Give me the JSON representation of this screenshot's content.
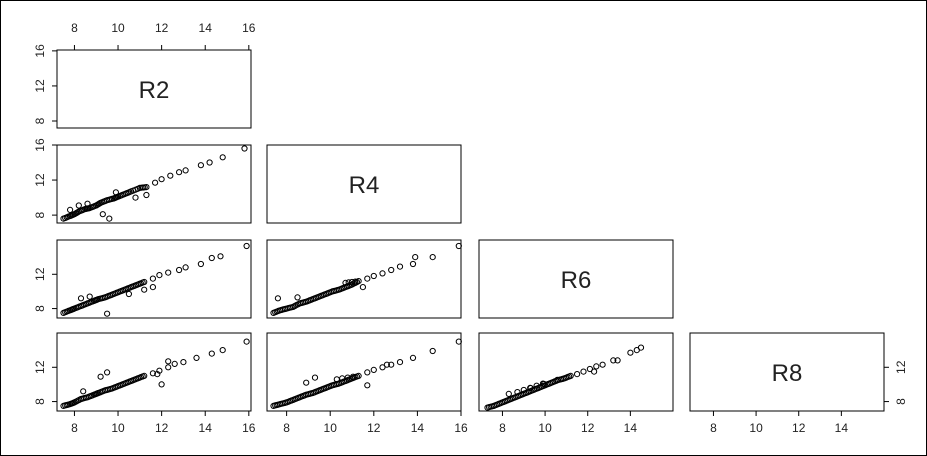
{
  "chart_data": {
    "type": "scatter",
    "layout": "pairs-lower-triangle",
    "variables": [
      "R2",
      "R4",
      "R6",
      "R8"
    ],
    "axis_ranges": {
      "R2": [
        7.2,
        16.1
      ],
      "R4": [
        7.1,
        16.0
      ],
      "R6": [
        6.9,
        16.0
      ],
      "R8": [
        6.9,
        16.0
      ]
    },
    "ticks": {
      "R2": [
        "8",
        "10",
        "12",
        "14",
        "16"
      ],
      "R4": [
        "8",
        "10",
        "12",
        "14",
        "16"
      ],
      "R6": [
        "8",
        "10",
        "12",
        "14"
      ],
      "R8": [
        "8",
        "10",
        "12",
        "14"
      ]
    },
    "side_ticks": {
      "R2": [
        "8",
        "12",
        "16"
      ],
      "R4": [
        "8",
        "12",
        "16"
      ],
      "R6": [
        "8",
        "12"
      ],
      "R8": [
        "8",
        "12"
      ]
    },
    "grid": false,
    "legend": "none",
    "point_style": "open circle",
    "panels": [
      {
        "x": "R2",
        "y": "R4",
        "points": [
          [
            7.5,
            7.6
          ],
          [
            7.8,
            7.9
          ],
          [
            8.0,
            8.1
          ],
          [
            8.2,
            8.4
          ],
          [
            8.5,
            8.7
          ],
          [
            8.7,
            8.8
          ],
          [
            9.0,
            9.1
          ],
          [
            9.2,
            9.4
          ],
          [
            9.5,
            9.7
          ],
          [
            9.8,
            9.9
          ],
          [
            10.0,
            10.1
          ],
          [
            10.3,
            10.4
          ],
          [
            10.6,
            10.7
          ],
          [
            11.0,
            11.1
          ],
          [
            11.3,
            11.2
          ],
          [
            11.7,
            11.7
          ],
          [
            12.0,
            12.1
          ],
          [
            12.4,
            12.5
          ],
          [
            12.8,
            12.9
          ],
          [
            13.1,
            13.1
          ],
          [
            13.8,
            13.7
          ],
          [
            14.2,
            14.0
          ],
          [
            14.8,
            14.6
          ],
          [
            15.8,
            15.6
          ],
          [
            9.3,
            8.1
          ],
          [
            9.6,
            7.6
          ],
          [
            8.6,
            9.3
          ],
          [
            8.2,
            9.1
          ],
          [
            10.8,
            10.0
          ],
          [
            11.3,
            10.3
          ],
          [
            7.8,
            8.6
          ],
          [
            9.9,
            10.6
          ]
        ]
      },
      {
        "x": "R2",
        "y": "R6",
        "points": [
          [
            7.5,
            7.5
          ],
          [
            7.8,
            7.8
          ],
          [
            8.0,
            8.0
          ],
          [
            8.3,
            8.3
          ],
          [
            8.6,
            8.6
          ],
          [
            8.9,
            8.9
          ],
          [
            9.1,
            9.1
          ],
          [
            9.4,
            9.3
          ],
          [
            9.7,
            9.6
          ],
          [
            10.0,
            9.9
          ],
          [
            10.3,
            10.2
          ],
          [
            10.6,
            10.5
          ],
          [
            10.9,
            10.8
          ],
          [
            11.2,
            11.1
          ],
          [
            11.6,
            11.5
          ],
          [
            11.9,
            11.9
          ],
          [
            12.3,
            12.2
          ],
          [
            12.8,
            12.5
          ],
          [
            13.1,
            12.8
          ],
          [
            13.8,
            13.2
          ],
          [
            14.3,
            13.9
          ],
          [
            14.7,
            14.1
          ],
          [
            15.9,
            15.3
          ],
          [
            9.5,
            7.4
          ],
          [
            8.7,
            9.4
          ],
          [
            8.3,
            9.2
          ],
          [
            11.2,
            10.2
          ],
          [
            11.6,
            10.5
          ],
          [
            10.5,
            9.7
          ]
        ]
      },
      {
        "x": "R4",
        "y": "R6",
        "points": [
          [
            7.4,
            7.5
          ],
          [
            7.7,
            7.8
          ],
          [
            8.0,
            8.0
          ],
          [
            8.3,
            8.2
          ],
          [
            8.6,
            8.6
          ],
          [
            8.9,
            8.8
          ],
          [
            9.2,
            9.1
          ],
          [
            9.5,
            9.4
          ],
          [
            9.8,
            9.7
          ],
          [
            10.1,
            10.0
          ],
          [
            10.4,
            10.2
          ],
          [
            10.7,
            10.5
          ],
          [
            11.0,
            10.8
          ],
          [
            11.3,
            11.2
          ],
          [
            11.7,
            11.5
          ],
          [
            12.0,
            11.8
          ],
          [
            12.4,
            12.1
          ],
          [
            12.8,
            12.5
          ],
          [
            13.2,
            12.9
          ],
          [
            13.8,
            13.2
          ],
          [
            13.9,
            14.0
          ],
          [
            14.7,
            14.0
          ],
          [
            15.9,
            15.3
          ],
          [
            7.6,
            9.2
          ],
          [
            8.5,
            9.3
          ],
          [
            11.5,
            10.5
          ],
          [
            10.7,
            11.0
          ]
        ]
      },
      {
        "x": "R2",
        "y": "R8",
        "points": [
          [
            7.5,
            7.5
          ],
          [
            7.8,
            7.7
          ],
          [
            8.0,
            7.9
          ],
          [
            8.3,
            8.3
          ],
          [
            8.6,
            8.5
          ],
          [
            8.9,
            8.8
          ],
          [
            9.1,
            9.0
          ],
          [
            9.4,
            9.3
          ],
          [
            9.7,
            9.5
          ],
          [
            10.0,
            9.8
          ],
          [
            10.3,
            10.1
          ],
          [
            10.6,
            10.4
          ],
          [
            10.9,
            10.7
          ],
          [
            11.2,
            11.0
          ],
          [
            11.6,
            11.3
          ],
          [
            11.9,
            11.6
          ],
          [
            12.3,
            12.0
          ],
          [
            12.6,
            12.4
          ],
          [
            13.0,
            12.6
          ],
          [
            13.6,
            13.1
          ],
          [
            14.3,
            13.6
          ],
          [
            14.8,
            14.0
          ],
          [
            15.9,
            15.0
          ],
          [
            9.5,
            11.4
          ],
          [
            9.2,
            10.9
          ],
          [
            8.4,
            9.2
          ],
          [
            11.8,
            11.2
          ],
          [
            12.0,
            10.0
          ],
          [
            12.3,
            12.7
          ]
        ]
      },
      {
        "x": "R4",
        "y": "R8",
        "points": [
          [
            7.4,
            7.5
          ],
          [
            7.7,
            7.7
          ],
          [
            8.0,
            7.9
          ],
          [
            8.3,
            8.2
          ],
          [
            8.6,
            8.5
          ],
          [
            8.9,
            8.8
          ],
          [
            9.2,
            9.0
          ],
          [
            9.5,
            9.3
          ],
          [
            9.8,
            9.6
          ],
          [
            10.1,
            9.9
          ],
          [
            10.4,
            10.1
          ],
          [
            10.7,
            10.4
          ],
          [
            11.0,
            10.7
          ],
          [
            11.3,
            11.0
          ],
          [
            11.7,
            11.4
          ],
          [
            12.0,
            11.7
          ],
          [
            12.4,
            12.0
          ],
          [
            12.8,
            12.3
          ],
          [
            13.2,
            12.6
          ],
          [
            13.8,
            13.1
          ],
          [
            14.7,
            13.9
          ],
          [
            15.9,
            15.0
          ],
          [
            9.3,
            10.8
          ],
          [
            8.9,
            10.2
          ],
          [
            10.3,
            10.6
          ],
          [
            11.7,
            9.9
          ],
          [
            12.6,
            12.3
          ]
        ]
      },
      {
        "x": "R6",
        "y": "R8",
        "points": [
          [
            7.3,
            7.3
          ],
          [
            7.6,
            7.5
          ],
          [
            7.9,
            7.8
          ],
          [
            8.2,
            8.1
          ],
          [
            8.5,
            8.4
          ],
          [
            8.8,
            8.7
          ],
          [
            9.1,
            9.0
          ],
          [
            9.4,
            9.3
          ],
          [
            9.7,
            9.6
          ],
          [
            10.0,
            9.9
          ],
          [
            10.3,
            10.2
          ],
          [
            10.6,
            10.5
          ],
          [
            10.9,
            10.7
          ],
          [
            11.2,
            11.0
          ],
          [
            11.5,
            11.2
          ],
          [
            11.8,
            11.5
          ],
          [
            12.1,
            11.8
          ],
          [
            12.4,
            12.1
          ],
          [
            12.7,
            12.3
          ],
          [
            13.2,
            12.8
          ],
          [
            13.4,
            12.8
          ],
          [
            14.0,
            13.7
          ],
          [
            14.3,
            14.0
          ],
          [
            14.5,
            14.3
          ],
          [
            8.3,
            8.9
          ],
          [
            8.7,
            9.1
          ],
          [
            9.9,
            10.1
          ],
          [
            12.3,
            11.5
          ]
        ]
      }
    ]
  }
}
